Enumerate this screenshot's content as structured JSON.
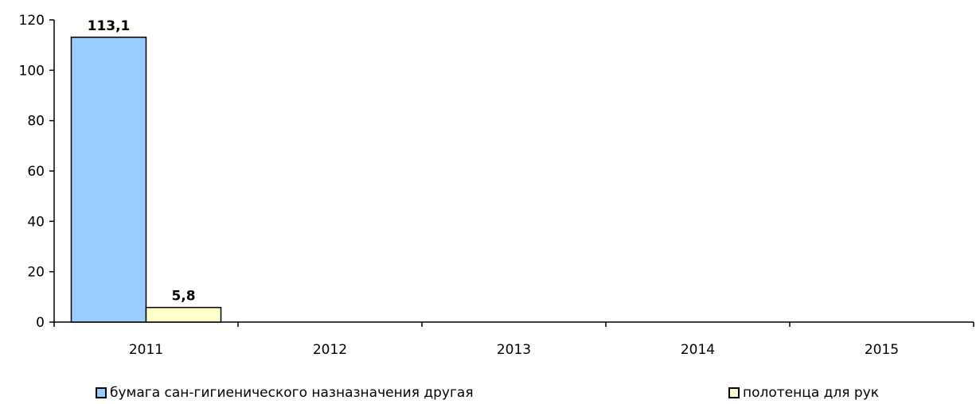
{
  "chart_data": {
    "type": "bar",
    "title": "",
    "xlabel": "",
    "ylabel": "",
    "categories": [
      "2011",
      "2012",
      "2013",
      "2014",
      "2015"
    ],
    "series": [
      {
        "name": "бумага сан-гигиенического назназначения другая",
        "values": [
          113.1,
          null,
          null,
          null,
          null
        ],
        "labels": [
          "113,1",
          "",
          "",
          "",
          ""
        ],
        "color": "#99ccff"
      },
      {
        "name": "полотенца для рук",
        "values": [
          5.8,
          null,
          null,
          null,
          null
        ],
        "labels": [
          "5,8",
          "",
          "",
          "",
          ""
        ],
        "color": "#ffffcc"
      }
    ],
    "ylim": [
      0,
      120
    ],
    "yticks": [
      "0",
      "20",
      "40",
      "60",
      "80",
      "100",
      "120"
    ],
    "grid": false,
    "legend_position": "bottom"
  }
}
